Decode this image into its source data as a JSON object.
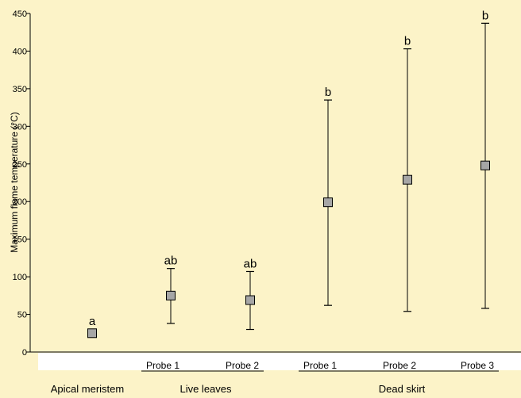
{
  "colors": {
    "background": "#fcf3c8",
    "label_band": "#ffffff",
    "marker_fill": "#a6a6a6",
    "line": "#000000"
  },
  "chart_data": {
    "type": "scatter",
    "ylabel": "Maximum flame temperature (°C)",
    "ylim": [
      0,
      450
    ],
    "yticks": [
      0,
      50,
      100,
      150,
      200,
      250,
      300,
      350,
      400,
      450
    ],
    "grid": false,
    "categories": [
      "",
      "Probe 1",
      "Probe 2",
      "Probe 1",
      "Probe 2",
      "Probe 3"
    ],
    "groups": [
      {
        "label": "Apical meristem",
        "members": [
          0
        ]
      },
      {
        "label": "Live leaves",
        "members": [
          1,
          2
        ]
      },
      {
        "label": "Dead skirt",
        "members": [
          3,
          4,
          5
        ]
      }
    ],
    "points": [
      {
        "mean": 25,
        "low": null,
        "high": null,
        "sig": "a"
      },
      {
        "mean": 75,
        "low": 38,
        "high": 111,
        "sig": "ab"
      },
      {
        "mean": 69,
        "low": 30,
        "high": 107,
        "sig": "ab"
      },
      {
        "mean": 199,
        "low": 62,
        "high": 335,
        "sig": "b"
      },
      {
        "mean": 229,
        "low": 54,
        "high": 403,
        "sig": "b"
      },
      {
        "mean": 248,
        "low": 58,
        "high": 437,
        "sig": "b"
      }
    ]
  }
}
